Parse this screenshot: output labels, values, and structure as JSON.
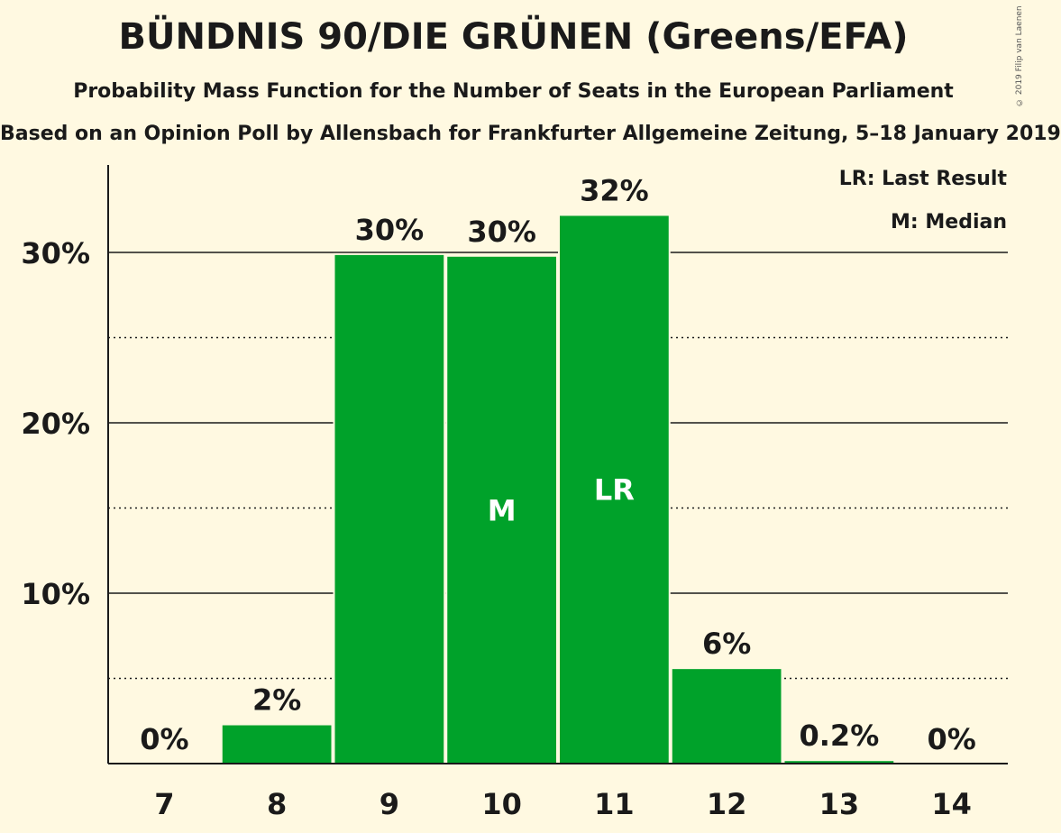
{
  "header": {
    "title": "BÜNDNIS 90/DIE GRÜNEN (Greens/EFA)",
    "subtitle": "Probability Mass Function for the Number of Seats in the European Parliament",
    "source": "Based on an Opinion Poll by Allensbach for Frankfurter Allgemeine Zeitung, 5–18 January 2019",
    "copyright": "© 2019 Filip van Laenen"
  },
  "legend": {
    "last_result": "LR: Last Result",
    "median": "M: Median"
  },
  "colors": {
    "background": "#fff9e1",
    "bar": "#00a22a",
    "text": "#1a1a1a"
  },
  "chart_data": {
    "type": "bar",
    "categories": [
      "7",
      "8",
      "9",
      "10",
      "11",
      "12",
      "13",
      "14"
    ],
    "values": [
      0,
      2.3,
      29.9,
      29.8,
      32.2,
      5.6,
      0.2,
      0
    ],
    "value_labels": [
      "0%",
      "2%",
      "30%",
      "30%",
      "32%",
      "6%",
      "0.2%",
      "0%"
    ],
    "bar_markers": [
      "",
      "",
      "",
      "M",
      "LR",
      "",
      "",
      ""
    ],
    "ylim": [
      0,
      35
    ],
    "yticks": [
      10,
      20,
      30
    ],
    "ytick_labels": [
      "10%",
      "20%",
      "30%"
    ],
    "minor_gridlines": [
      5,
      15,
      25
    ],
    "grid": true,
    "legend_placement": "top-right"
  }
}
